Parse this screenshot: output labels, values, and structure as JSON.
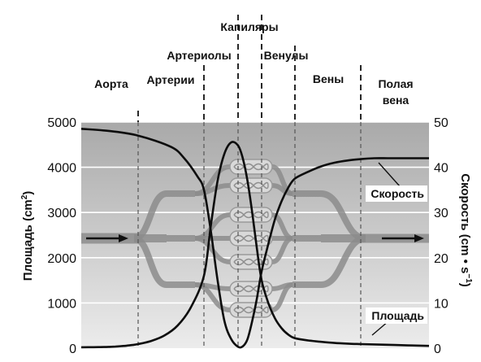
{
  "chart_data": {
    "type": "line",
    "segments": [
      "Аорта",
      "Артерии",
      "Артериолы",
      "Капиляры",
      "Венулы",
      "Вены",
      "Полая вена"
    ],
    "segment_label_lines": [
      [
        "Аорта"
      ],
      [
        "Артерии"
      ],
      [
        "Артериолы"
      ],
      [
        "Капиляры"
      ],
      [
        "Венулы"
      ],
      [
        "Вены"
      ],
      [
        "Полая",
        "вена"
      ]
    ],
    "y_left": {
      "label_prefix": "Площадь (cm",
      "label_sup": "2",
      "label_suffix": ")",
      "ylim": [
        0,
        5000
      ],
      "ticks": [
        "0",
        "1000",
        "2000",
        "3000",
        "4000",
        "5000"
      ]
    },
    "y_right": {
      "label_prefix": "Скорость (cm • s",
      "label_sup": "−1",
      "label_suffix": ")",
      "ylim": [
        0,
        50
      ],
      "ticks": [
        "0",
        "10",
        "20",
        "30",
        "40",
        "50"
      ]
    },
    "series": [
      {
        "name": "Площадь",
        "axis": "left",
        "x": [
          0,
          0.2,
          0.4,
          0.5,
          0.6,
          0.7,
          0.8,
          0.9,
          1.0,
          1.2,
          1.4,
          1.6,
          1.8,
          2.0,
          2.2,
          2.4,
          2.6,
          2.8,
          3.0,
          3.2,
          3.4,
          3.6,
          3.8,
          4.0,
          4.2,
          4.4,
          4.6,
          4.8,
          5.0,
          5.2,
          5.4,
          5.6,
          5.8,
          6.0,
          6.5,
          7.0
        ],
        "values": [
          20,
          22,
          25,
          28,
          35,
          45,
          55,
          70,
          90,
          160,
          280,
          500,
          900,
          1600,
          2700,
          3700,
          4300,
          4550,
          4480,
          4200,
          3700,
          3000,
          2200,
          1500,
          1000,
          660,
          440,
          300,
          220,
          170,
          140,
          115,
          100,
          90,
          70,
          50
        ]
      },
      {
        "name": "Скорость",
        "axis": "right",
        "x": [
          0,
          0.5,
          1.0,
          1.5,
          1.7,
          1.9,
          2.0,
          2.2,
          2.4,
          2.6,
          2.8,
          3.0,
          3.2,
          3.4,
          3.6,
          3.8,
          4.0,
          4.2,
          4.4,
          4.6,
          4.8,
          5.0,
          5.2,
          5.4,
          5.6,
          5.8,
          6.0,
          6.2,
          6.4,
          6.6,
          6.8,
          7.0
        ],
        "values": [
          48.5,
          48.0,
          47.0,
          44.5,
          42.0,
          38.0,
          35.0,
          26.0,
          15.0,
          6.0,
          2.0,
          0.3,
          0.4,
          2.0,
          6.0,
          11.0,
          17.0,
          23.0,
          28.5,
          32.5,
          35.5,
          37.5,
          39.0,
          40.2,
          41.0,
          41.5,
          41.8,
          42.0,
          42.0,
          42.0,
          42.0,
          42.0
        ]
      }
    ],
    "legend": "inline-labels-right",
    "grid": true
  }
}
